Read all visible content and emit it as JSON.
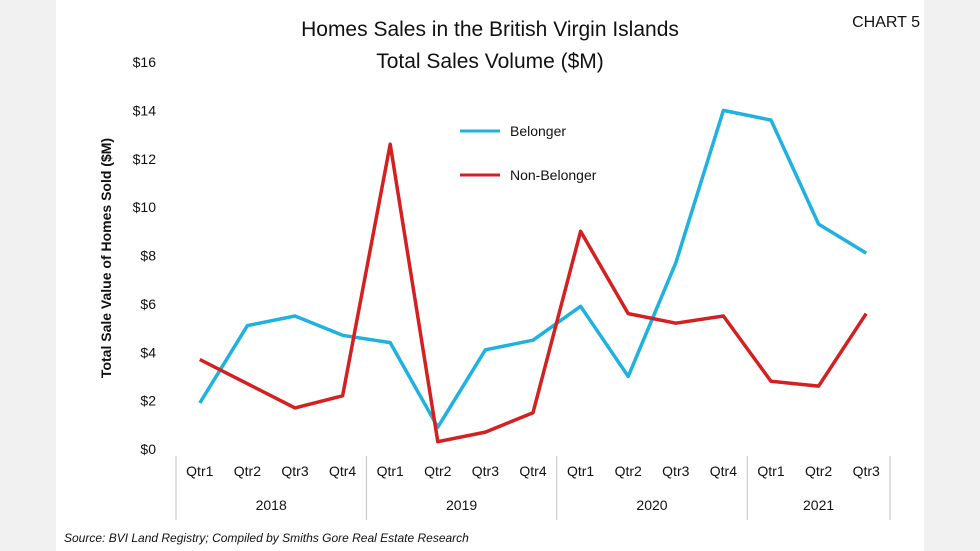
{
  "chart_data": {
    "type": "line",
    "title": "Homes Sales in the British Virgin Islands",
    "subtitle": "Total Sales Volume ($M)",
    "tag": "CHART 5",
    "ylabel": "Total Sale Value of Homes Sold ($M)",
    "xlabel": "",
    "ylim": [
      0,
      16
    ],
    "yticks": [
      "$0",
      "$2",
      "$4",
      "$6",
      "$8",
      "$10",
      "$12",
      "$14",
      "$16"
    ],
    "categories": [
      "Qtr1",
      "Qtr2",
      "Qtr3",
      "Qtr4",
      "Qtr1",
      "Qtr2",
      "Qtr3",
      "Qtr4",
      "Qtr1",
      "Qtr2",
      "Qtr3",
      "Qtr4",
      "Qtr1",
      "Qtr2",
      "Qtr3"
    ],
    "year_groups": [
      {
        "label": "2018",
        "count": 4
      },
      {
        "label": "2019",
        "count": 4
      },
      {
        "label": "2020",
        "count": 4
      },
      {
        "label": "2021",
        "count": 3
      }
    ],
    "series": [
      {
        "name": "Belonger",
        "color": "#1fb1e0",
        "values": [
          1.9,
          5.1,
          5.5,
          4.7,
          4.4,
          0.9,
          4.1,
          4.5,
          5.9,
          3.0,
          7.7,
          14.0,
          13.6,
          9.3,
          8.1
        ]
      },
      {
        "name": "Non-Belonger",
        "color": "#d42020",
        "values": [
          3.7,
          2.7,
          1.7,
          2.2,
          12.6,
          0.3,
          0.7,
          1.5,
          9.0,
          5.6,
          5.2,
          5.5,
          2.8,
          2.6,
          5.6
        ]
      }
    ],
    "legend_position": "top-center",
    "grid": false
  },
  "source": "Source: BVI Land Registry; Compiled by Smiths Gore Real Estate Research"
}
